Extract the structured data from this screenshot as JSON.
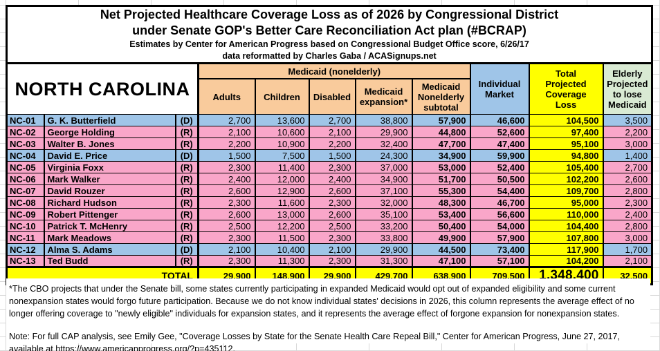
{
  "title": {
    "line1": "Net Projected Healthcare Coverage Loss as of 2026 by Congressional District",
    "line2": "under Senate GOP's Better Care Reconciliation Act plan (#BCRAP)",
    "line3": "Estimates by Center for American Progress based on Congressional Budget Office score, 6/26/17",
    "line4": "data reformatted by Charles Gaba / ACASignups.net"
  },
  "header": {
    "state": "NORTH CAROLINA",
    "group": "Medicaid (nonelderly)",
    "cols": {
      "adults": "Adults",
      "children": "Children",
      "disabled": "Disabled",
      "expansion": "Medicaid\nexpansion*",
      "subtotal": "Medicaid\nNonelderly\nsubtotal",
      "individual": "Individual\nMarket",
      "total": "Total\nProjected\nCoverage\nLoss",
      "elderly": "Elderly\nProjected\nto lose\nMedicaid"
    }
  },
  "chart_data": {
    "type": "table",
    "title": "Net Projected Healthcare Coverage Loss as of 2026 by Congressional District under Senate GOP's Better Care Reconciliation Act plan (#BCRAP)",
    "state": "NORTH CAROLINA",
    "columns": [
      "District",
      "Representative",
      "Party",
      "Adults",
      "Children",
      "Disabled",
      "Medicaid expansion*",
      "Medicaid Nonelderly subtotal",
      "Individual Market",
      "Total Projected Coverage Loss",
      "Elderly Projected to lose Medicaid"
    ],
    "rows": [
      {
        "district": "NC-01",
        "rep": "G. K. Butterfield",
        "party": "(D)",
        "values": [
          2700,
          13600,
          2700,
          38800,
          57900,
          46600,
          104500,
          3500
        ]
      },
      {
        "district": "NC-02",
        "rep": "George Holding",
        "party": "(R)",
        "values": [
          2100,
          10600,
          2100,
          29900,
          44800,
          52600,
          97400,
          2200
        ]
      },
      {
        "district": "NC-03",
        "rep": "Walter B. Jones",
        "party": "(R)",
        "values": [
          2200,
          10900,
          2200,
          32400,
          47700,
          47400,
          95100,
          3000
        ]
      },
      {
        "district": "NC-04",
        "rep": "David E. Price",
        "party": "(D)",
        "values": [
          1500,
          7500,
          1500,
          24300,
          34900,
          59900,
          94800,
          1400
        ]
      },
      {
        "district": "NC-05",
        "rep": "Virginia Foxx",
        "party": "(R)",
        "values": [
          2300,
          11400,
          2300,
          37000,
          53000,
          52400,
          105400,
          2700
        ]
      },
      {
        "district": "NC-06",
        "rep": "Mark Walker",
        "party": "(R)",
        "values": [
          2400,
          12000,
          2400,
          34900,
          51700,
          50500,
          102200,
          2600
        ]
      },
      {
        "district": "NC-07",
        "rep": "David Rouzer",
        "party": "(R)",
        "values": [
          2600,
          12900,
          2600,
          37100,
          55300,
          54400,
          109700,
          2800
        ]
      },
      {
        "district": "NC-08",
        "rep": "Richard Hudson",
        "party": "(R)",
        "values": [
          2300,
          11600,
          2300,
          32000,
          48300,
          46700,
          95000,
          2300
        ]
      },
      {
        "district": "NC-09",
        "rep": "Robert Pittenger",
        "party": "(R)",
        "values": [
          2600,
          13000,
          2600,
          35100,
          53400,
          56600,
          110000,
          2400
        ]
      },
      {
        "district": "NC-10",
        "rep": "Patrick T. McHenry",
        "party": "(R)",
        "values": [
          2500,
          12200,
          2500,
          33200,
          50400,
          54000,
          104400,
          2800
        ]
      },
      {
        "district": "NC-11",
        "rep": "Mark Meadows",
        "party": "(R)",
        "values": [
          2300,
          11500,
          2300,
          33800,
          49900,
          57900,
          107800,
          3000
        ]
      },
      {
        "district": "NC-12",
        "rep": "Alma S. Adams",
        "party": "(D)",
        "values": [
          2100,
          10400,
          2100,
          29900,
          44500,
          73400,
          117900,
          1700
        ]
      },
      {
        "district": "NC-13",
        "rep": "Ted Budd",
        "party": "(R)",
        "values": [
          2300,
          11300,
          2300,
          31300,
          47100,
          57100,
          104200,
          2100
        ]
      }
    ],
    "total": {
      "label": "TOTAL",
      "values": [
        29900,
        148900,
        29900,
        429700,
        638900,
        709500,
        1348400,
        32500
      ]
    }
  },
  "footnote": "*The CBO projects that under the Senate bill, some states currently participating in expanded Medicaid would opt out of expanded eligibility and some current nonexpansion states would forgo future participation. Because we do not know individual states' decisions in 2026, this column represents the average effect of no longer offering coverage to \"newly eligible\" individuals for expansion states, and it represents the average effect of forgone expansion for nonexpansion states.",
  "note": "Note: For full CAP analysis, see Emily Gee, \"Coverage Losses by State for the Senate Health Care Repeal Bill,\" Center for American Progress, June 27, 2017, available at https://www.americanprogress.org/?p=435112.",
  "colors": {
    "democrat_row": "#9FC5E8",
    "republican_row": "#F9A6C9",
    "medicaid_header": "#F9CB9C",
    "individual_market_header": "#9FC5E8",
    "total_column": "#FFFF00",
    "elderly_header": "#D9EAD3",
    "total_row": "#FFFF00"
  }
}
